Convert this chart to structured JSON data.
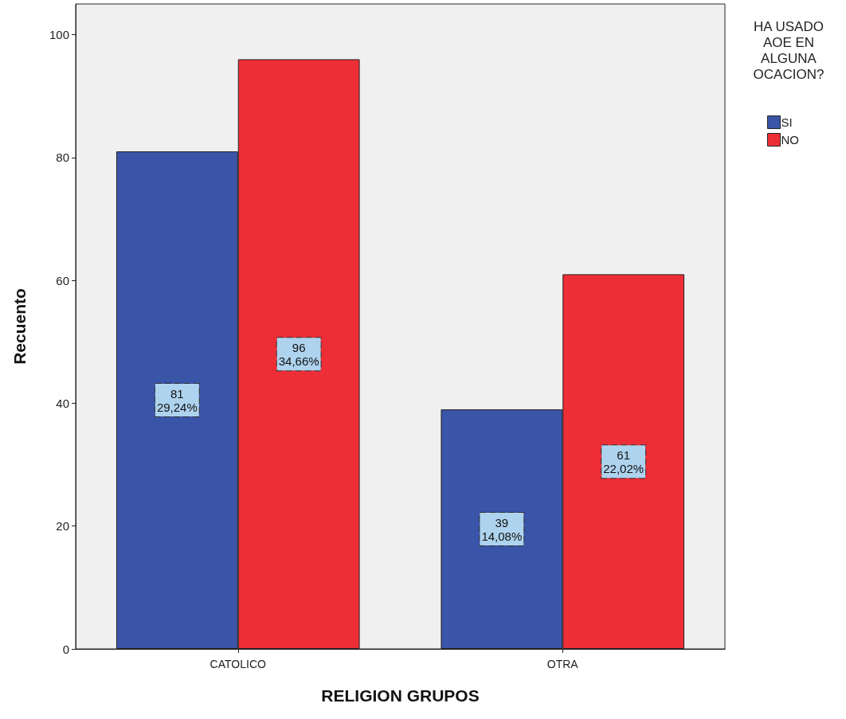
{
  "chart_data": {
    "type": "bar",
    "xlabel": "RELIGION GRUPOS",
    "ylabel": "Recuento",
    "legend_title": "HA USADO\nAOE EN\nALGUNA\nOCACION?",
    "categories": [
      "CATOLICO",
      "OTRA"
    ],
    "series": [
      {
        "name": "SI",
        "color": "#3a54a8",
        "values": [
          81,
          39
        ],
        "value_labels": [
          "81\n29,24%",
          "39\n14,08%"
        ]
      },
      {
        "name": "NO",
        "color": "#ee2e37",
        "values": [
          96,
          61
        ],
        "value_labels": [
          "96\n34,66%",
          "61\n22,02%"
        ]
      }
    ],
    "ylim": [
      0,
      105
    ],
    "yticks": [
      0,
      20,
      40,
      60,
      80,
      100
    ],
    "grid": false,
    "legend": "top right"
  }
}
